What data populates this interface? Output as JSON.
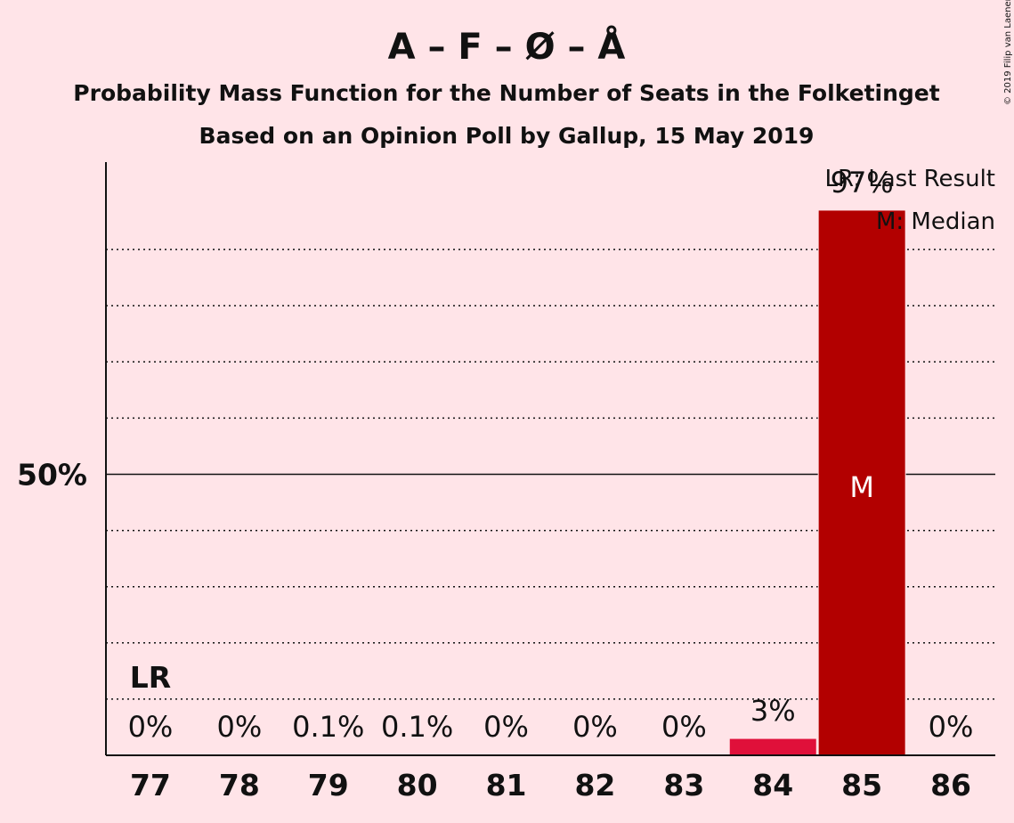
{
  "header": {
    "title": "A – F – Ø – Å",
    "subtitle_1": "Probability Mass Function for the Number of Seats in the Folketinget",
    "subtitle_2": "Based on an Opinion Poll by Gallup, 15 May 2019",
    "copyright": "© 2019 Filip van Laenen"
  },
  "legend": {
    "lr": "LR: Last Result",
    "m": "M: Median"
  },
  "colors": {
    "background": "#FFE4E8",
    "bar_default": "#E0103A",
    "bar_median": "#B20000",
    "axis": "#111111"
  },
  "chart_data": {
    "type": "bar",
    "categories": [
      "77",
      "78",
      "79",
      "80",
      "81",
      "82",
      "83",
      "84",
      "85",
      "86"
    ],
    "values": [
      0,
      0,
      0.1,
      0.1,
      0,
      0,
      0,
      3,
      97,
      0
    ],
    "labels": [
      "0%",
      "0%",
      "0.1%",
      "0.1%",
      "0%",
      "0%",
      "0%",
      "3%",
      "97%",
      "0%"
    ],
    "ylim": [
      0,
      105
    ],
    "yticks": [
      {
        "value": 50,
        "label": "50%"
      }
    ],
    "grid": "dotted every 10%",
    "last_result": {
      "category": "77",
      "label": "LR"
    },
    "median": {
      "category": "85",
      "label": "M"
    }
  }
}
